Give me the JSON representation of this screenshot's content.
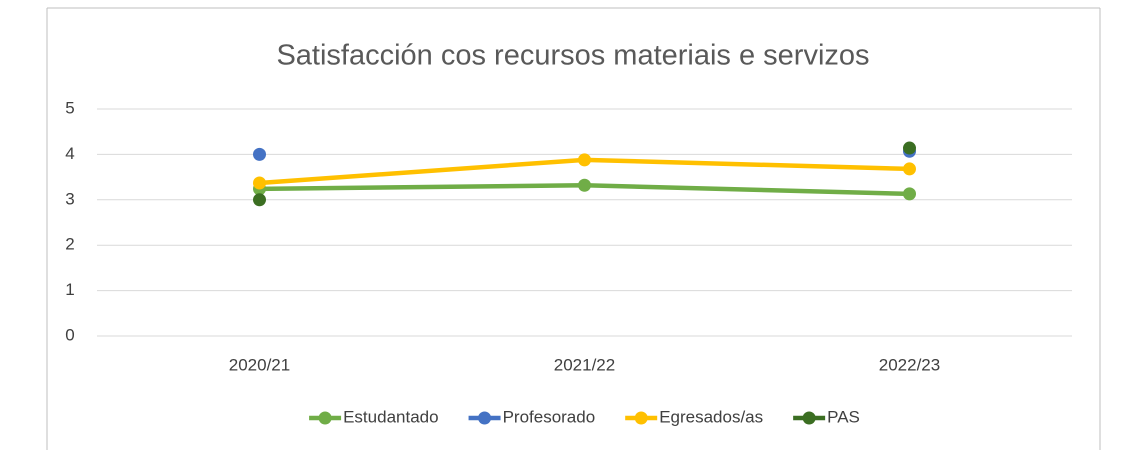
{
  "chart_data": {
    "type": "line",
    "title": "Satisfacción cos recursos materiais e servizos",
    "categories": [
      "2020/21",
      "2021/22",
      "2022/23"
    ],
    "series": [
      {
        "name": "Estudantado",
        "color": "#70ad47",
        "values": [
          3.24,
          3.32,
          3.13
        ]
      },
      {
        "name": "Profesorado",
        "color": "#4472c4",
        "values": [
          4.0,
          null,
          4.07
        ]
      },
      {
        "name": "Egresados/as",
        "color": "#ffc000",
        "values": [
          3.37,
          3.88,
          3.68
        ]
      },
      {
        "name": "PAS",
        "color": "#3b6e22",
        "values": [
          3.0,
          null,
          4.14
        ]
      }
    ],
    "ylim": [
      0,
      5
    ],
    "yticks": [
      0,
      1,
      2,
      3,
      4,
      5
    ],
    "grid": true,
    "legend": "bottom"
  }
}
